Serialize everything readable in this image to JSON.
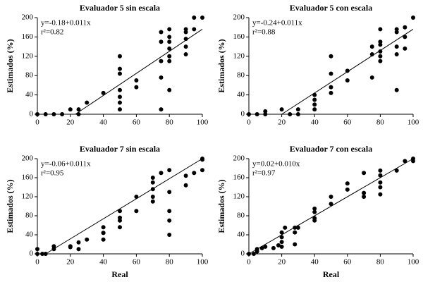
{
  "chart_data": [
    {
      "type": "scatter",
      "title": "Evaluador 5 sin escala",
      "y_label": "Estimados (%)",
      "annotations": [
        "y=-0.18+0.011x",
        "r²=0.82"
      ],
      "color": "#000000",
      "x": [
        0,
        5,
        10,
        15,
        20,
        25,
        25,
        30,
        40,
        50,
        50,
        50,
        50,
        50,
        50,
        50,
        60,
        60,
        75,
        75,
        75,
        75,
        75,
        80,
        80,
        80,
        80,
        80,
        80,
        80,
        90,
        90,
        90,
        90,
        90,
        95,
        95,
        100
      ],
      "values": [
        0,
        0,
        0,
        0,
        10,
        0,
        10,
        24,
        44,
        10,
        24,
        36,
        50,
        84,
        94,
        120,
        56,
        70,
        10,
        76,
        110,
        150,
        170,
        50,
        110,
        120,
        136,
        150,
        160,
        176,
        124,
        140,
        156,
        170,
        176,
        176,
        200,
        200
      ],
      "fit_line": {
        "x": [
          23,
          100
        ],
        "y": [
          0,
          176
        ]
      },
      "xlim": [
        0,
        100
      ],
      "xticks": [
        0,
        20,
        40,
        60,
        80,
        100
      ],
      "ylim": [
        0,
        200
      ],
      "yticks": [
        0,
        40,
        80,
        120,
        160,
        200
      ]
    },
    {
      "type": "scatter",
      "title": "Evaluador 5 con escala",
      "y_label": "Estimados (%)",
      "annotations": [
        "y=-0.24+0.011x",
        "r²=0.88"
      ],
      "color": "#000000",
      "x": [
        0,
        5,
        10,
        10,
        20,
        25,
        30,
        30,
        40,
        40,
        40,
        40,
        50,
        50,
        50,
        50,
        60,
        60,
        75,
        75,
        75,
        80,
        80,
        80,
        80,
        80,
        80,
        90,
        90,
        90,
        90,
        90,
        95,
        95,
        95,
        100
      ],
      "values": [
        0,
        0,
        0,
        6,
        10,
        0,
        0,
        10,
        10,
        20,
        30,
        40,
        44,
        56,
        84,
        120,
        70,
        90,
        76,
        124,
        140,
        110,
        120,
        130,
        144,
        150,
        176,
        50,
        124,
        140,
        170,
        176,
        136,
        160,
        180,
        200
      ],
      "fit_line": {
        "x": [
          20,
          100
        ],
        "y": [
          0,
          176
        ]
      },
      "xlim": [
        0,
        100
      ],
      "xticks": [
        0,
        20,
        40,
        60,
        80,
        100
      ],
      "ylim": [
        0,
        200
      ],
      "yticks": [
        0,
        40,
        80,
        120,
        160,
        200
      ]
    },
    {
      "type": "scatter",
      "title": "Evaluador 7 sin escala",
      "y_label": "Estimados (%)",
      "x_label": "Real",
      "annotations": [
        "y=-0.06+0.011x",
        "r²=0.95"
      ],
      "color": "#000000",
      "x": [
        0,
        0,
        3,
        5,
        10,
        10,
        20,
        20,
        25,
        25,
        30,
        40,
        40,
        40,
        40,
        50,
        50,
        50,
        50,
        60,
        60,
        70,
        70,
        70,
        70,
        70,
        75,
        80,
        80,
        80,
        80,
        80,
        90,
        90,
        95,
        100,
        100,
        100
      ],
      "values": [
        0,
        10,
        0,
        0,
        10,
        16,
        14,
        16,
        10,
        24,
        30,
        44,
        30,
        44,
        56,
        70,
        90,
        56,
        76,
        90,
        120,
        110,
        120,
        136,
        150,
        160,
        170,
        176,
        40,
        70,
        90,
        130,
        144,
        164,
        170,
        176,
        198,
        200
      ],
      "fit_line": {
        "x": [
          5,
          100
        ],
        "y": [
          0,
          200
        ]
      },
      "xlim": [
        0,
        100
      ],
      "xticks": [
        0,
        20,
        40,
        60,
        80,
        100
      ],
      "ylim": [
        0,
        200
      ],
      "yticks": [
        0,
        40,
        80,
        120,
        160,
        200
      ]
    },
    {
      "type": "scatter",
      "title": "Evaluador 7 con escala",
      "y_label": "Estimados (%)",
      "x_label": "Real",
      "annotations": [
        "y=0.02+0.010x",
        "r²=0.97"
      ],
      "color": "#000000",
      "x": [
        0,
        3,
        5,
        5,
        8,
        10,
        15,
        18,
        20,
        20,
        20,
        20,
        22,
        28,
        28,
        28,
        30,
        40,
        40,
        40,
        40,
        50,
        50,
        60,
        60,
        70,
        70,
        70,
        80,
        80,
        80,
        80,
        80,
        90,
        95,
        100,
        100
      ],
      "values": [
        0,
        0,
        5,
        10,
        12,
        15,
        12,
        18,
        15,
        25,
        35,
        45,
        55,
        20,
        45,
        55,
        55,
        70,
        75,
        88,
        95,
        105,
        120,
        135,
        148,
        120,
        128,
        170,
        125,
        140,
        150,
        165,
        175,
        175,
        195,
        195,
        200
      ],
      "fit_line": {
        "x": [
          0,
          100
        ],
        "y": [
          0,
          200
        ]
      },
      "xlim": [
        0,
        100
      ],
      "xticks": [
        0,
        20,
        40,
        60,
        80,
        100
      ],
      "ylim": [
        0,
        200
      ],
      "yticks": [
        0,
        40,
        80,
        120,
        160,
        200
      ]
    }
  ]
}
